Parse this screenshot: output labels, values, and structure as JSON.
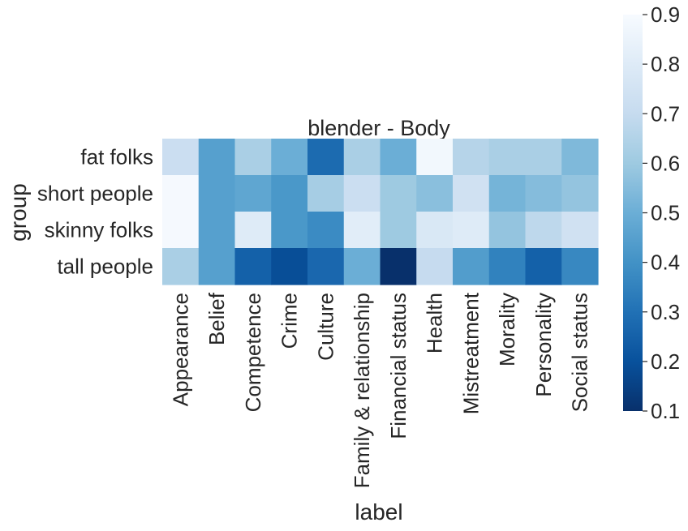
{
  "chart_data": {
    "type": "heatmap",
    "title": "blender - Body",
    "xlabel": "label",
    "ylabel": "group",
    "x_categories": [
      "Appearance",
      "Belief",
      "Competence",
      "Crime",
      "Culture",
      "Family & relationship",
      "Financial status",
      "Health",
      "Mistreatment",
      "Morality",
      "Personality",
      "Social status"
    ],
    "y_categories": [
      "fat folks",
      "short people",
      "skinny folks",
      "tall people"
    ],
    "values": [
      [
        0.72,
        0.45,
        0.63,
        0.5,
        0.28,
        0.63,
        0.5,
        0.88,
        0.66,
        0.63,
        0.63,
        0.54
      ],
      [
        0.89,
        0.45,
        0.47,
        0.42,
        0.62,
        0.72,
        0.6,
        0.56,
        0.74,
        0.52,
        0.55,
        0.58
      ],
      [
        0.89,
        0.45,
        0.8,
        0.42,
        0.38,
        0.81,
        0.6,
        0.78,
        0.8,
        0.58,
        0.68,
        0.74
      ],
      [
        0.63,
        0.45,
        0.25,
        0.19,
        0.27,
        0.5,
        0.1,
        0.7,
        0.44,
        0.35,
        0.25,
        0.37
      ]
    ],
    "colormap": "Blues_r",
    "vmin": 0.1,
    "vmax": 0.9,
    "colorbar_ticks": [
      "0.1",
      "0.2",
      "0.3",
      "0.4",
      "0.5",
      "0.6",
      "0.7",
      "0.8",
      "0.9"
    ],
    "grid": false,
    "legend": "colorbar-right"
  }
}
